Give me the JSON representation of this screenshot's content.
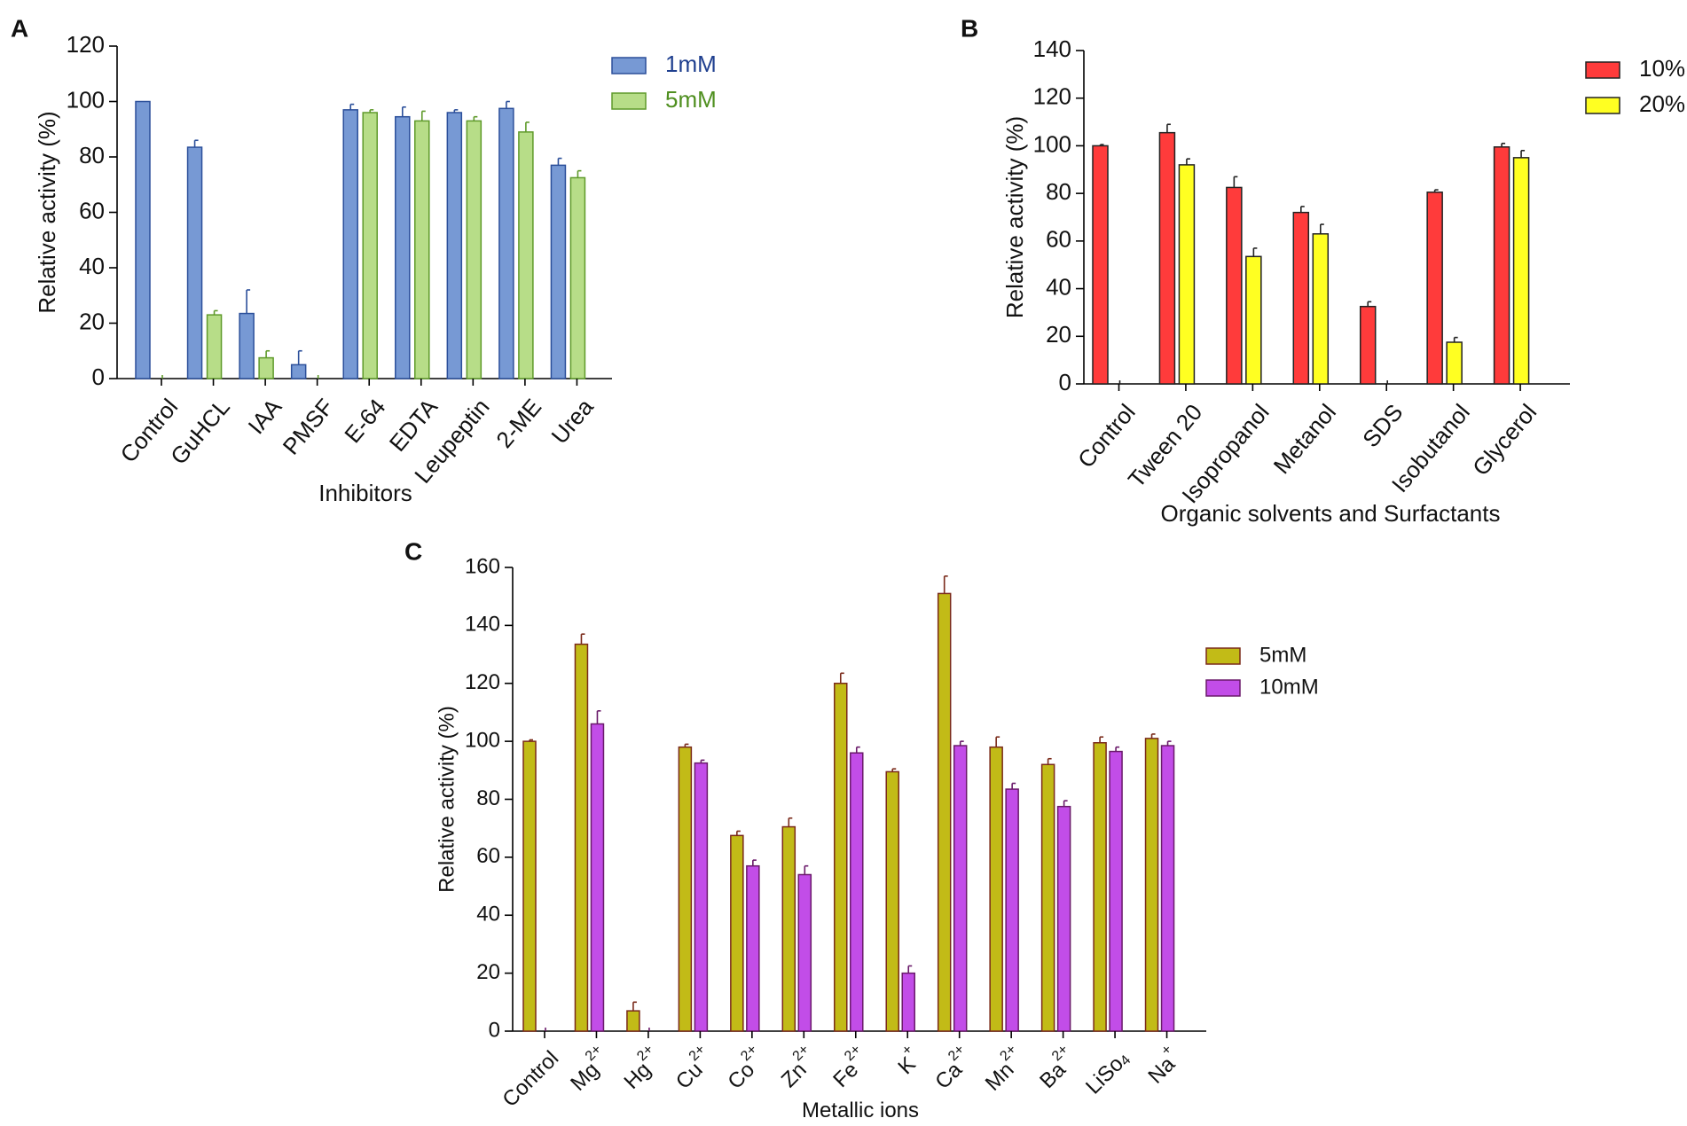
{
  "chart_data": [
    {
      "panel": "A",
      "type": "bar",
      "title": "",
      "xlabel": "Inhibitors",
      "ylabel": "Relative activity (%)",
      "ylim": [
        0,
        120
      ],
      "yticks": [
        0,
        20,
        40,
        60,
        80,
        100,
        120
      ],
      "categories": [
        "Control",
        "GuHCL",
        "IAA",
        "PMSF",
        "E-64",
        "EDTA",
        "Leupeptin",
        "2-ME",
        "Urea"
      ],
      "series": [
        {
          "name": "1mM",
          "color": "#7799d4",
          "stroke": "#2b4f9a",
          "values": [
            100,
            83.5,
            23.5,
            5,
            97,
            94.5,
            96,
            97.5,
            77
          ],
          "errors": [
            0,
            2.5,
            8.5,
            5,
            2,
            3.5,
            1,
            2.5,
            2.5
          ]
        },
        {
          "name": "5mM",
          "color": "#b7dd88",
          "stroke": "#5f9a2a",
          "values": [
            0,
            23,
            7.5,
            0,
            96,
            93,
            93,
            89,
            72.5
          ],
          "errors": [
            0,
            1.5,
            2.5,
            0,
            1,
            3.5,
            1.5,
            3.5,
            2.5
          ]
        }
      ],
      "legend_position": "top-right",
      "legend_text_colors": [
        "#1f3f8f",
        "#4f8f1f"
      ]
    },
    {
      "panel": "B",
      "type": "bar",
      "title": "",
      "xlabel": "Organic solvents and Surfactants",
      "ylabel": "Relative activity (%)",
      "ylim": [
        0,
        140
      ],
      "yticks": [
        0,
        20,
        40,
        60,
        80,
        100,
        120,
        140
      ],
      "categories": [
        "Control",
        "Tween 20",
        "Isopropanol",
        "Metanol",
        "SDS",
        "Isobutanol",
        "Glycerol"
      ],
      "series": [
        {
          "name": "10%",
          "color": "#ff3b3b",
          "stroke": "#222222",
          "values": [
            100,
            105.5,
            82.5,
            72,
            32.5,
            80.5,
            99.5
          ],
          "errors": [
            0.5,
            3.5,
            4.5,
            2.5,
            2,
            1,
            1.5
          ]
        },
        {
          "name": "20%",
          "color": "#ffff22",
          "stroke": "#222222",
          "values": [
            0,
            92,
            53.5,
            63,
            0,
            17.5,
            95
          ],
          "errors": [
            0,
            2.5,
            3.5,
            4,
            0,
            2,
            3
          ]
        }
      ],
      "legend_position": "top-right",
      "legend_text_colors": [
        "#111111",
        "#111111"
      ]
    },
    {
      "panel": "C",
      "type": "bar",
      "title": "",
      "xlabel": "Metallic ions",
      "ylabel": "Relative activity (%)",
      "ylim": [
        0,
        160
      ],
      "yticks": [
        0,
        20,
        40,
        60,
        80,
        100,
        120,
        140,
        160
      ],
      "categories": [
        {
          "base": "Control",
          "sup": "",
          "sub": ""
        },
        {
          "base": "Mg",
          "sup": "2+",
          "sub": ""
        },
        {
          "base": "Hg",
          "sup": "2+",
          "sub": ""
        },
        {
          "base": "Cu",
          "sup": "2+",
          "sub": ""
        },
        {
          "base": "Co",
          "sup": "2+",
          "sub": ""
        },
        {
          "base": "Zn",
          "sup": "2+",
          "sub": ""
        },
        {
          "base": "Fe",
          "sup": "2+",
          "sub": ""
        },
        {
          "base": "K",
          "sup": "+",
          "sub": ""
        },
        {
          "base": "Ca",
          "sup": "2+",
          "sub": ""
        },
        {
          "base": "Mn",
          "sup": "2+",
          "sub": ""
        },
        {
          "base": "Ba",
          "sup": "2+",
          "sub": ""
        },
        {
          "base": "LiSo",
          "sup": "",
          "sub": "4"
        },
        {
          "base": "Na",
          "sup": "+",
          "sub": ""
        }
      ],
      "series": [
        {
          "name": "5mM",
          "color": "#c2bb17",
          "stroke": "#7a2a1a",
          "values": [
            100,
            133.5,
            7,
            98,
            67.5,
            70.5,
            120,
            89.5,
            151,
            98,
            92,
            99.5,
            101
          ],
          "errors": [
            0.5,
            3.5,
            3,
            1,
            1.5,
            3,
            3.5,
            1,
            6,
            3.5,
            2,
            2,
            1.5
          ]
        },
        {
          "name": "10mM",
          "color": "#c24de8",
          "stroke": "#6a1a6a",
          "values": [
            0,
            106,
            0,
            92.5,
            57,
            54,
            96,
            20,
            98.5,
            83.5,
            77.5,
            96.5,
            98.5
          ],
          "errors": [
            0,
            4.5,
            0,
            1,
            2,
            3,
            2,
            2.5,
            1.5,
            2,
            2,
            1.5,
            1.5
          ]
        }
      ],
      "legend_position": "right",
      "legend_text_colors": [
        "#111111",
        "#111111"
      ]
    }
  ]
}
